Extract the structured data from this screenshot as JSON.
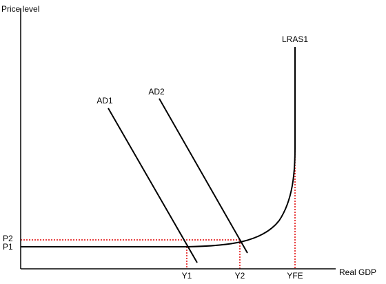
{
  "axes": {
    "y_label": "Price level",
    "x_label": "Real GDP"
  },
  "curves": [
    {
      "label": "AD1"
    },
    {
      "label": "AD2"
    },
    {
      "label": "LRAS1"
    }
  ],
  "x_ticks": [
    "Y1",
    "Y2",
    "YFE"
  ],
  "y_ticks": [
    "P2",
    "P1"
  ]
}
